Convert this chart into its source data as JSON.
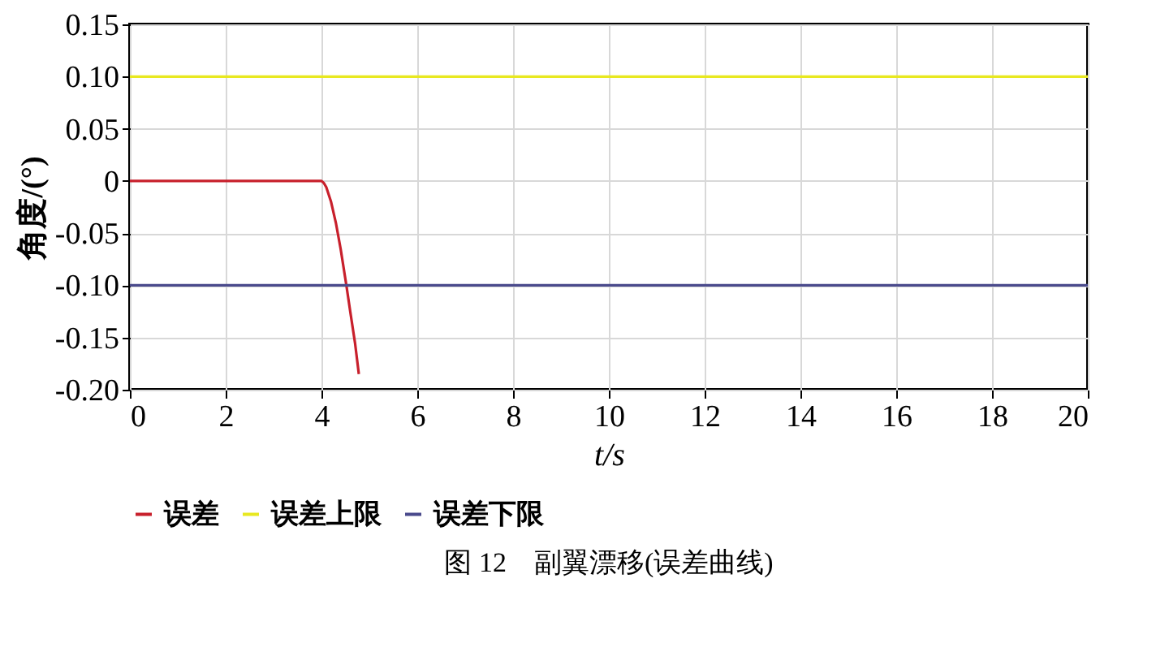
{
  "chart_data": {
    "type": "line",
    "title": "图 12　副翼漂移(误差曲线)",
    "xlabel": "t/s",
    "ylabel": "角度/(°)",
    "xlim": [
      0,
      20
    ],
    "xticks": [
      0,
      2,
      4,
      6,
      8,
      10,
      12,
      14,
      16,
      18,
      20
    ],
    "ylim": [
      -0.2,
      0.15
    ],
    "yticks": [
      {
        "value": 0.15,
        "label": "0.15"
      },
      {
        "value": 0.1,
        "label": "0.10"
      },
      {
        "value": 0.05,
        "label": "0.05"
      },
      0,
      {
        "value": -0.05,
        "label": "-0.05"
      },
      {
        "value": -0.1,
        "label": "-0.10"
      },
      {
        "value": -0.15,
        "label": "-0.15"
      },
      {
        "value": -0.2,
        "label": "-0.20"
      }
    ],
    "grid": true,
    "legend": "bottom",
    "series": [
      {
        "name": "误差",
        "color": "#c8202c",
        "x": [
          0,
          1,
          2,
          3,
          4,
          4.05,
          4.1,
          4.2,
          4.3,
          4.4,
          4.52,
          4.6,
          4.7,
          4.78
        ],
        "values": [
          0,
          0,
          0,
          0,
          0,
          -0.002,
          -0.006,
          -0.02,
          -0.04,
          -0.065,
          -0.1,
          -0.125,
          -0.155,
          -0.185
        ]
      },
      {
        "name": "误差上限",
        "color": "#e8e820",
        "x": [
          0,
          20
        ],
        "values": [
          0.1,
          0.1
        ]
      },
      {
        "name": "误差下限",
        "color": "#4a4a8c",
        "x": [
          0,
          20
        ],
        "values": [
          -0.1,
          -0.1
        ]
      }
    ]
  }
}
